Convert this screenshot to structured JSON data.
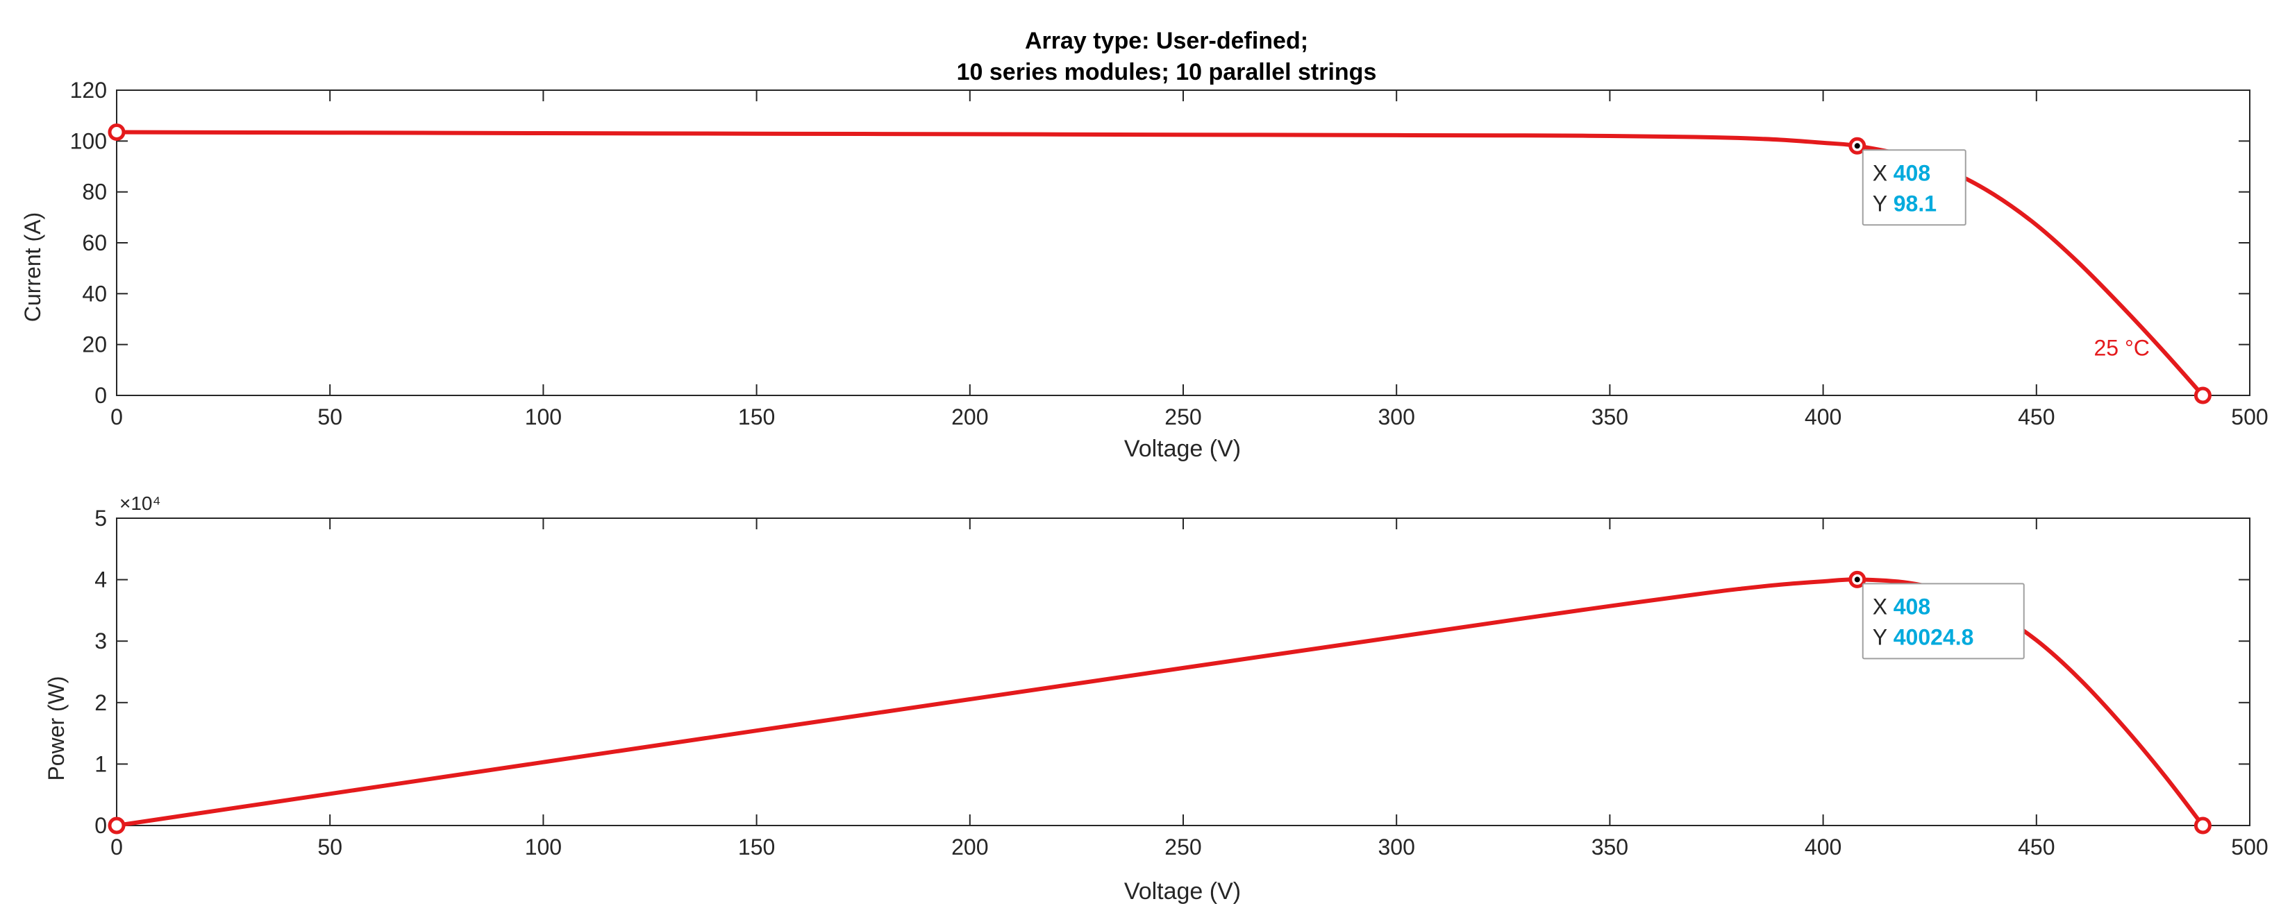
{
  "figure_title": {
    "line1": "Array type: User-defined;",
    "line2": "10 series modules; 10 parallel strings"
  },
  "colors": {
    "curve": "#e41a1c",
    "datatip_value": "#00aadd",
    "axis": "#262626"
  },
  "chart_data": [
    {
      "type": "line",
      "title": "Array type: User-defined; 10 series modules; 10 parallel strings",
      "xlabel": "Voltage (V)",
      "ylabel": "Current (A)",
      "xlim": [
        0,
        500
      ],
      "ylim": [
        0,
        120
      ],
      "xticks": [
        0,
        50,
        100,
        150,
        200,
        250,
        300,
        350,
        400,
        450,
        500
      ],
      "yticks": [
        0,
        20,
        40,
        60,
        80,
        100,
        120
      ],
      "grid": false,
      "series": [
        {
          "x": [
            0,
            50,
            100,
            150,
            200,
            250,
            300,
            330,
            350,
            370,
            380,
            390,
            400,
            408,
            420,
            430,
            440,
            450,
            460,
            470,
            480,
            489
          ],
          "y": [
            103.5,
            103.3,
            103.1,
            102.9,
            102.7,
            102.5,
            102.3,
            102.2,
            102.0,
            101.6,
            101.2,
            100.5,
            99.3,
            98.1,
            94.0,
            88.0,
            79.0,
            67.0,
            52.0,
            35.0,
            17.0,
            0
          ]
        }
      ],
      "markers": [
        {
          "x": 0,
          "y": 103.5
        },
        {
          "x": 408,
          "y": 98.1
        },
        {
          "x": 489,
          "y": 0
        }
      ],
      "datatip": {
        "x_label": "X",
        "x_value": "408",
        "y_label": "Y",
        "y_value": "98.1"
      },
      "annotation": {
        "text": "25 °C",
        "x": 470,
        "y": 19
      }
    },
    {
      "type": "line",
      "xlabel": "Voltage (V)",
      "ylabel": "Power (W)",
      "xlim": [
        0,
        500
      ],
      "ylim": [
        0,
        5
      ],
      "y_exponent": "×10⁴",
      "xticks": [
        0,
        50,
        100,
        150,
        200,
        250,
        300,
        350,
        400,
        450,
        500
      ],
      "yticks": [
        0,
        1,
        2,
        3,
        4,
        5
      ],
      "grid": false,
      "series": [
        {
          "x": [
            0,
            50,
            100,
            150,
            200,
            250,
            300,
            330,
            350,
            370,
            380,
            390,
            400,
            408,
            420,
            430,
            440,
            450,
            460,
            470,
            480,
            489
          ],
          "y": [
            0,
            0.516,
            1.031,
            1.544,
            2.054,
            2.563,
            3.069,
            3.373,
            3.57,
            3.759,
            3.846,
            3.92,
            3.972,
            4.002,
            3.948,
            3.784,
            3.476,
            3.015,
            2.392,
            1.645,
            0.816,
            0
          ]
        }
      ],
      "markers": [
        {
          "x": 0,
          "y": 0
        },
        {
          "x": 408,
          "y": 4.002
        },
        {
          "x": 489,
          "y": 0
        }
      ],
      "datatip": {
        "x_label": "X",
        "x_value": "408",
        "y_label": "Y",
        "y_value": "40024.8"
      }
    }
  ]
}
